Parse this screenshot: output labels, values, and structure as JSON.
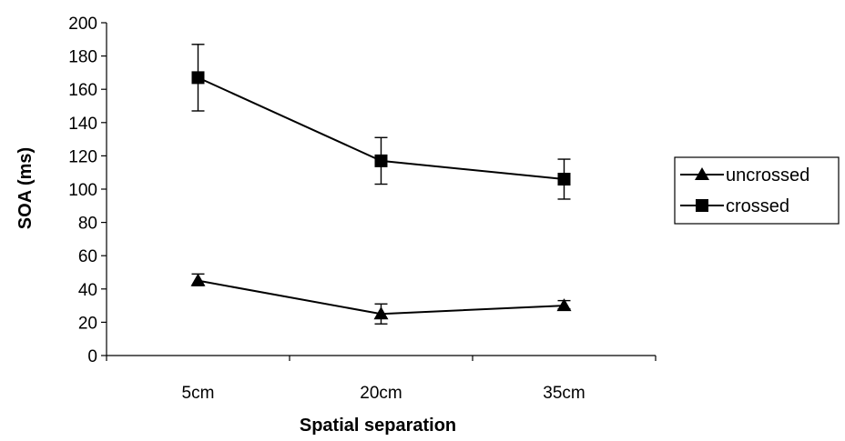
{
  "chart_data": {
    "type": "line",
    "title": "",
    "xlabel": "Spatial separation",
    "ylabel": "SOA (ms)",
    "categories": [
      "5cm",
      "20cm",
      "35cm"
    ],
    "ylim": [
      0,
      200
    ],
    "yticks": [
      0,
      20,
      40,
      60,
      80,
      100,
      120,
      140,
      160,
      180,
      200
    ],
    "grid": false,
    "legend_position": "right",
    "series": [
      {
        "name": "uncrossed",
        "marker": "triangle",
        "values": [
          45,
          25,
          30
        ],
        "error_low": [
          42,
          19,
          28
        ],
        "error_high": [
          49,
          31,
          33
        ]
      },
      {
        "name": "crossed",
        "marker": "square",
        "values": [
          167,
          117,
          106
        ],
        "error_low": [
          147,
          103,
          94
        ],
        "error_high": [
          187,
          131,
          118
        ]
      }
    ],
    "colors": {
      "line": "#000000",
      "background": "#ffffff"
    }
  }
}
